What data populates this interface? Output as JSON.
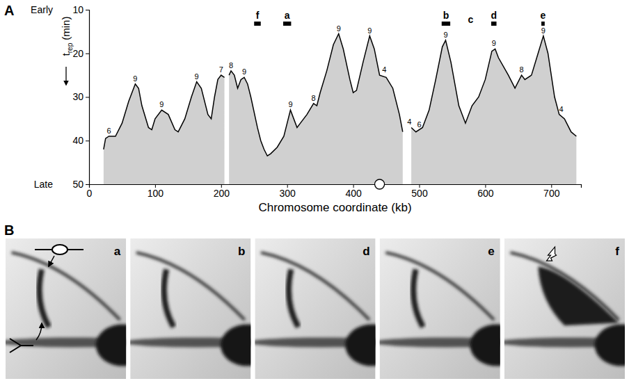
{
  "chart_data": {
    "type": "area",
    "panel_label": "A",
    "x": [
      22,
      25,
      30,
      40,
      50,
      60,
      70,
      75,
      80,
      90,
      95,
      100,
      110,
      120,
      130,
      135,
      145,
      155,
      163,
      170,
      180,
      185,
      190,
      195,
      200,
      205,
      208,
      212,
      215,
      220,
      225,
      230,
      235,
      240,
      245,
      255,
      260,
      265,
      270,
      275,
      285,
      295,
      300,
      305,
      310,
      315,
      320,
      330,
      340,
      345,
      350,
      360,
      370,
      378,
      385,
      395,
      400,
      405,
      415,
      425,
      432,
      440,
      450,
      460,
      470,
      475,
      480,
      488,
      495,
      505,
      515,
      525,
      535,
      540,
      548,
      560,
      570,
      580,
      590,
      600,
      610,
      615,
      620,
      635,
      645,
      655,
      660,
      670,
      680,
      688,
      695,
      705,
      712,
      720,
      730,
      738
    ],
    "values": [
      42,
      39.5,
      39,
      39,
      36,
      31,
      27,
      28,
      32,
      37,
      37.5,
      35,
      33,
      34,
      37.5,
      38,
      35,
      30,
      26.5,
      28,
      34,
      35,
      30,
      26,
      25,
      25.5,
      null,
      25,
      24,
      25,
      28,
      26,
      25.5,
      27,
      30,
      37,
      40,
      42,
      43.5,
      43,
      41.5,
      39,
      36,
      33,
      35,
      37,
      36,
      34,
      31.5,
      32,
      29,
      24,
      18,
      15.5,
      19,
      26,
      29,
      28.5,
      22,
      16,
      19,
      25,
      25.5,
      28,
      34,
      38,
      null,
      37,
      38,
      37,
      33,
      26,
      18.5,
      17,
      22,
      32,
      36,
      32,
      30,
      26,
      19.5,
      19,
      21,
      25,
      28,
      25,
      26,
      25,
      20,
      16,
      20,
      30,
      34,
      35,
      38,
      39
    ],
    "color": "#d0d0d0",
    "xlim": [
      0,
      745
    ],
    "xticks": [
      0,
      100,
      200,
      300,
      400,
      500,
      600,
      700
    ],
    "ylim": [
      50,
      10
    ],
    "yticks": [
      10,
      20,
      30,
      40,
      50
    ],
    "xlabel": "Chromosome coordinate (kb)",
    "ylabel": {
      "text": "t",
      "subscript": "rep",
      "unit": "(min)"
    },
    "y_end_labels": {
      "top": "Early",
      "bottom": "Late"
    },
    "annotations": [
      {
        "x": 30,
        "y": 39,
        "text": "6"
      },
      {
        "x": 70,
        "y": 27,
        "text": "9"
      },
      {
        "x": 110,
        "y": 33,
        "text": "9"
      },
      {
        "x": 163,
        "y": 26.5,
        "text": "9"
      },
      {
        "x": 200,
        "y": 25,
        "text": "7"
      },
      {
        "x": 215,
        "y": 24,
        "text": "8"
      },
      {
        "x": 235,
        "y": 25.5,
        "text": "9"
      },
      {
        "x": 305,
        "y": 33,
        "text": "9"
      },
      {
        "x": 340,
        "y": 31.5,
        "text": "8"
      },
      {
        "x": 378,
        "y": 15.5,
        "text": "9"
      },
      {
        "x": 425,
        "y": 16,
        "text": "9"
      },
      {
        "x": 447,
        "y": 25,
        "text": "4"
      },
      {
        "x": 485,
        "y": 37,
        "text": "4"
      },
      {
        "x": 500,
        "y": 37.5,
        "text": "6"
      },
      {
        "x": 540,
        "y": 17,
        "text": "9"
      },
      {
        "x": 613,
        "y": 19,
        "text": "9"
      },
      {
        "x": 655,
        "y": 25,
        "text": "8"
      },
      {
        "x": 688,
        "y": 16,
        "text": "9"
      },
      {
        "x": 715,
        "y": 34,
        "text": "4"
      }
    ],
    "fragments": [
      {
        "label": "f",
        "start": 250,
        "end": 260
      },
      {
        "label": "a",
        "start": 294,
        "end": 306
      },
      {
        "label": "b",
        "start": 534,
        "end": 547
      },
      {
        "label": "c",
        "x": 578
      },
      {
        "label": "d",
        "start": 609,
        "end": 617
      },
      {
        "label": "e",
        "start": 685,
        "end": 690
      }
    ],
    "centromere": 440
  },
  "gel_panels": {
    "label": "B",
    "panels": [
      {
        "label": "a"
      },
      {
        "label": "b"
      },
      {
        "label": "d"
      },
      {
        "label": "e"
      },
      {
        "label": "f"
      }
    ]
  }
}
